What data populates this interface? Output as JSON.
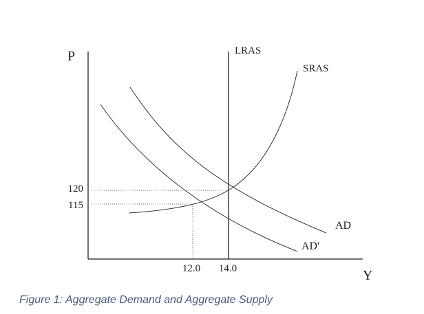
{
  "axis_labels": {
    "y": "P",
    "x": "Y"
  },
  "curve_labels": {
    "lras": "LRAS",
    "sras": "SRAS",
    "ad": "AD",
    "ad_prime": "AD'"
  },
  "ticks": {
    "y": [
      "120",
      "115"
    ],
    "x": [
      "12.0",
      "14.0"
    ]
  },
  "caption": "Figure 1: Aggregate Demand and Aggregate Supply"
}
